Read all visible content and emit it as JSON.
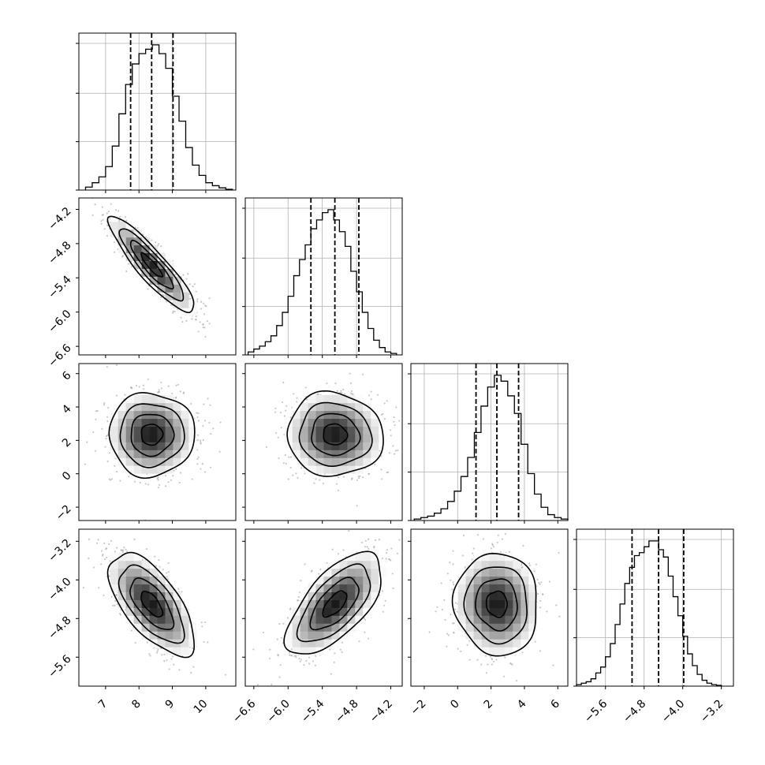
{
  "chart_data": {
    "type": "corner",
    "grid": true,
    "variables": [
      {
        "range": [
          6.2,
          10.9
        ],
        "ticks": [
          7,
          8,
          9,
          10
        ],
        "tick_labels": [
          "7",
          "8",
          "9",
          "10"
        ],
        "quantiles": [
          7.75,
          8.38,
          9.02
        ],
        "hist": {
          "bins": [
            [
              6.4,
              6.6,
              0.02
            ],
            [
              6.6,
              6.8,
              0.05
            ],
            [
              6.8,
              7.0,
              0.09
            ],
            [
              7.0,
              7.2,
              0.16
            ],
            [
              7.2,
              7.4,
              0.3
            ],
            [
              7.4,
              7.6,
              0.52
            ],
            [
              7.6,
              7.8,
              0.72
            ],
            [
              7.8,
              8.0,
              0.86
            ],
            [
              8.0,
              8.2,
              0.93
            ],
            [
              8.2,
              8.4,
              0.96
            ],
            [
              8.4,
              8.6,
              0.99
            ],
            [
              8.6,
              8.8,
              0.93
            ],
            [
              8.8,
              9.0,
              0.83
            ],
            [
              9.0,
              9.2,
              0.64
            ],
            [
              9.2,
              9.4,
              0.47
            ],
            [
              9.4,
              9.6,
              0.29
            ],
            [
              9.6,
              9.8,
              0.17
            ],
            [
              9.8,
              10.0,
              0.1
            ],
            [
              10.0,
              10.2,
              0.05
            ],
            [
              10.2,
              10.4,
              0.03
            ],
            [
              10.4,
              10.6,
              0.015
            ],
            [
              10.6,
              10.8,
              0.005
            ]
          ],
          "ymax": 1.07,
          "ticks": [
            0.0,
            0.33,
            0.66,
            1.0
          ]
        }
      },
      {
        "range": [
          -6.75,
          -4.0
        ],
        "ticks": [
          -6.6,
          -6.0,
          -5.4,
          -4.8,
          -4.2
        ],
        "tick_labels": [
          "−6.6",
          "−6.0",
          "−5.4",
          "−4.8",
          "−4.2"
        ],
        "quantiles": [
          -5.6,
          -5.18,
          -4.76
        ],
        "hist": {
          "bins": [
            [
              -6.7,
              -6.6,
              0.02
            ],
            [
              -6.6,
              -6.5,
              0.04
            ],
            [
              -6.5,
              -6.4,
              0.06
            ],
            [
              -6.4,
              -6.3,
              0.09
            ],
            [
              -6.3,
              -6.2,
              0.13
            ],
            [
              -6.2,
              -6.1,
              0.2
            ],
            [
              -6.1,
              -6.0,
              0.29
            ],
            [
              -6.0,
              -5.9,
              0.4
            ],
            [
              -5.9,
              -5.8,
              0.54
            ],
            [
              -5.8,
              -5.7,
              0.65
            ],
            [
              -5.7,
              -5.6,
              0.75
            ],
            [
              -5.6,
              -5.5,
              0.86
            ],
            [
              -5.5,
              -5.4,
              0.92
            ],
            [
              -5.4,
              -5.3,
              0.97
            ],
            [
              -5.3,
              -5.2,
              0.99
            ],
            [
              -5.2,
              -5.1,
              0.92
            ],
            [
              -5.1,
              -5.0,
              0.84
            ],
            [
              -5.0,
              -4.9,
              0.74
            ],
            [
              -4.9,
              -4.8,
              0.57
            ],
            [
              -4.8,
              -4.7,
              0.43
            ],
            [
              -4.7,
              -4.6,
              0.29
            ],
            [
              -4.6,
              -4.5,
              0.18
            ],
            [
              -4.5,
              -4.4,
              0.1
            ],
            [
              -4.4,
              -4.3,
              0.05
            ],
            [
              -4.3,
              -4.2,
              0.02
            ],
            [
              -4.2,
              -4.1,
              0.01
            ]
          ],
          "ymax": 1.07,
          "ticks": [
            0.0,
            0.33,
            0.66,
            1.0
          ]
        }
      },
      {
        "range": [
          -2.8,
          6.6
        ],
        "ticks": [
          -2,
          0,
          2,
          4,
          6
        ],
        "tick_labels": [
          "−2",
          "0",
          "2",
          "4",
          "6"
        ],
        "quantiles": [
          1.1,
          2.35,
          3.65
        ],
        "hist": {
          "bins": [
            [
              -2.6,
              -2.2,
              0.01
            ],
            [
              -2.2,
              -1.8,
              0.02
            ],
            [
              -1.8,
              -1.4,
              0.03
            ],
            [
              -1.4,
              -1.0,
              0.05
            ],
            [
              -1.0,
              -0.6,
              0.08
            ],
            [
              -0.6,
              -0.2,
              0.13
            ],
            [
              -0.2,
              0.2,
              0.2
            ],
            [
              0.2,
              0.6,
              0.3
            ],
            [
              0.6,
              1.0,
              0.43
            ],
            [
              1.0,
              1.4,
              0.6
            ],
            [
              1.4,
              1.8,
              0.78
            ],
            [
              1.8,
              2.2,
              0.91
            ],
            [
              2.2,
              2.6,
              0.99
            ],
            [
              2.6,
              3.0,
              0.95
            ],
            [
              3.0,
              3.4,
              0.85
            ],
            [
              3.4,
              3.8,
              0.73
            ],
            [
              3.8,
              4.2,
              0.52
            ],
            [
              4.2,
              4.6,
              0.32
            ],
            [
              4.6,
              5.0,
              0.18
            ],
            [
              5.0,
              5.4,
              0.09
            ],
            [
              5.4,
              5.8,
              0.04
            ],
            [
              5.8,
              6.2,
              0.02
            ],
            [
              6.2,
              6.6,
              0.01
            ]
          ],
          "ymax": 1.07,
          "ticks": [
            0.0,
            0.33,
            0.66,
            1.0
          ]
        }
      },
      {
        "range": [
          -6.2,
          -2.95
        ],
        "ticks": [
          -5.6,
          -4.8,
          -4.0,
          -3.2
        ],
        "tick_labels": [
          "−5.6",
          "−4.8",
          "−4.0",
          "−3.2"
        ],
        "quantiles": [
          -5.05,
          -4.5,
          -3.98
        ],
        "hist": {
          "bins": [
            [
              -6.2,
              -6.1,
              0.01
            ],
            [
              -6.1,
              -6.0,
              0.02
            ],
            [
              -6.0,
              -5.9,
              0.03
            ],
            [
              -5.9,
              -5.8,
              0.05
            ],
            [
              -5.8,
              -5.7,
              0.09
            ],
            [
              -5.7,
              -5.6,
              0.13
            ],
            [
              -5.6,
              -5.5,
              0.2
            ],
            [
              -5.5,
              -5.4,
              0.29
            ],
            [
              -5.4,
              -5.3,
              0.42
            ],
            [
              -5.3,
              -5.2,
              0.56
            ],
            [
              -5.2,
              -5.1,
              0.7
            ],
            [
              -5.1,
              -5.0,
              0.81
            ],
            [
              -5.0,
              -4.9,
              0.89
            ],
            [
              -4.9,
              -4.8,
              0.91
            ],
            [
              -4.8,
              -4.7,
              0.95
            ],
            [
              -4.7,
              -4.6,
              0.99
            ],
            [
              -4.6,
              -4.5,
              0.99
            ],
            [
              -4.5,
              -4.4,
              0.93
            ],
            [
              -4.4,
              -4.3,
              0.88
            ],
            [
              -4.3,
              -4.2,
              0.75
            ],
            [
              -4.2,
              -4.1,
              0.61
            ],
            [
              -4.1,
              -4.0,
              0.48
            ],
            [
              -4.0,
              -3.9,
              0.34
            ],
            [
              -3.9,
              -3.8,
              0.22
            ],
            [
              -3.8,
              -3.7,
              0.14
            ],
            [
              -3.7,
              -3.6,
              0.08
            ],
            [
              -3.6,
              -3.5,
              0.04
            ],
            [
              -3.5,
              -3.4,
              0.02
            ],
            [
              -3.4,
              -3.3,
              0.01
            ],
            [
              -3.3,
              -3.2,
              0.005
            ]
          ],
          "ymax": 1.07,
          "ticks": [
            0.0,
            0.33,
            0.66,
            1.0
          ]
        }
      }
    ],
    "pairs": [
      {
        "row": 1,
        "col": 0,
        "mean": [
          8.38,
          -5.18
        ],
        "sd": [
          0.64,
          0.42
        ],
        "rho": -0.9,
        "levels": [
          0.5,
          1.0,
          1.5,
          2.0
        ],
        "contour_levels": [
          0.5,
          1.0,
          1.5,
          2.0
        ]
      },
      {
        "row": 2,
        "col": 0,
        "mean": [
          8.38,
          2.35
        ],
        "sd": [
          0.64,
          1.25
        ],
        "rho": 0.0,
        "contour_levels": [
          0.5,
          1.0,
          1.5,
          2.0
        ]
      },
      {
        "row": 2,
        "col": 1,
        "mean": [
          -5.18,
          2.35
        ],
        "sd": [
          0.42,
          1.25
        ],
        "rho": -0.05,
        "contour_levels": [
          0.5,
          1.0,
          1.5,
          2.0
        ]
      },
      {
        "row": 3,
        "col": 0,
        "mean": [
          8.38,
          -4.5
        ],
        "sd": [
          0.64,
          0.53
        ],
        "rho": -0.65,
        "contour_levels": [
          0.5,
          1.0,
          1.5,
          2.0
        ]
      },
      {
        "row": 3,
        "col": 1,
        "mean": [
          -5.18,
          -4.5
        ],
        "sd": [
          0.42,
          0.53
        ],
        "rho": 0.65,
        "contour_levels": [
          0.5,
          1.0,
          1.5,
          2.0
        ]
      },
      {
        "row": 3,
        "col": 2,
        "mean": [
          2.35,
          -4.5
        ],
        "sd": [
          1.25,
          0.53
        ],
        "rho": -0.05,
        "contour_levels": [
          0.5,
          1.0,
          1.5,
          2.0
        ]
      }
    ],
    "colors": {
      "line": "#000000",
      "grid": "#b0b0b0",
      "points": "#9a9a9a",
      "density_light": "#ffffff",
      "density_dark": "#1a1a1a"
    }
  }
}
